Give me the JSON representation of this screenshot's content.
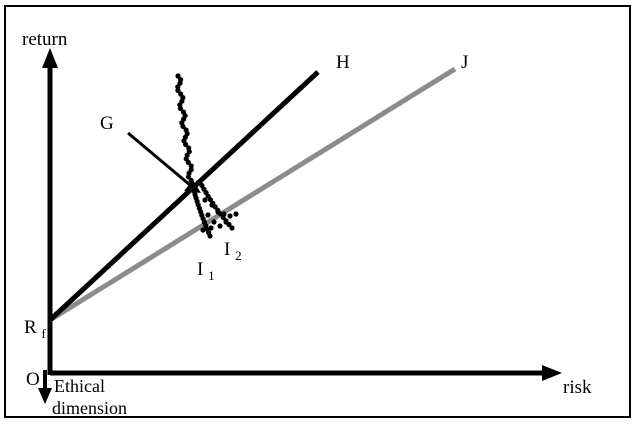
{
  "axes": {
    "y_label": "return",
    "x_label": "risk",
    "z_label_line1": "Ethical",
    "z_label_line2": "dimension",
    "origin_label": "O"
  },
  "intercept": {
    "base": "R",
    "subscript": "f"
  },
  "lines": {
    "upper": {
      "label": "H",
      "color": "#000000"
    },
    "lower": {
      "label": "J",
      "color": "#8c8c8c"
    }
  },
  "pointer": {
    "label": "G"
  },
  "indifference_curves": [
    {
      "base": "I",
      "subscript": "1"
    },
    {
      "base": "I",
      "subscript": "2"
    }
  ]
}
